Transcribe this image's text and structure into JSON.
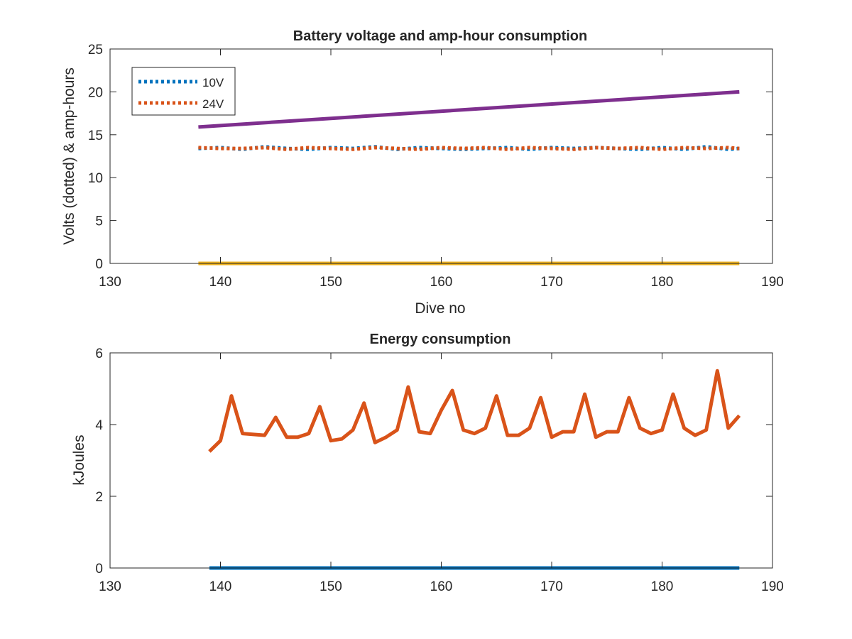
{
  "chart_data": [
    {
      "type": "line",
      "title": "Battery voltage and amp-hour consumption",
      "xlabel": "Dive no",
      "ylabel": "Volts (dotted) & amp-hours",
      "xlim": [
        130,
        190
      ],
      "ylim": [
        0,
        25
      ],
      "xticks": [
        130,
        140,
        150,
        160,
        170,
        180,
        190
      ],
      "yticks": [
        0,
        5,
        10,
        15,
        20,
        25
      ],
      "grid": false,
      "legend": "top-left",
      "series": [
        {
          "name": "10V",
          "style": "dotted",
          "color": "#0072BD",
          "x": [
            138,
            140,
            142,
            144,
            146,
            148,
            150,
            152,
            154,
            156,
            158,
            160,
            162,
            164,
            166,
            168,
            170,
            172,
            174,
            176,
            178,
            180,
            182,
            184,
            186,
            187
          ],
          "y": [
            13.4,
            13.5,
            13.3,
            13.6,
            13.4,
            13.3,
            13.5,
            13.4,
            13.6,
            13.3,
            13.5,
            13.4,
            13.3,
            13.4,
            13.5,
            13.3,
            13.5,
            13.4,
            13.5,
            13.4,
            13.3,
            13.5,
            13.3,
            13.6,
            13.3,
            13.4
          ]
        },
        {
          "name": "24V",
          "style": "dotted",
          "color": "#D95319",
          "x": [
            138,
            140,
            142,
            144,
            146,
            148,
            150,
            152,
            154,
            156,
            158,
            160,
            162,
            164,
            166,
            168,
            170,
            172,
            174,
            176,
            178,
            180,
            182,
            184,
            186,
            187
          ],
          "y": [
            13.5,
            13.4,
            13.4,
            13.5,
            13.3,
            13.5,
            13.4,
            13.3,
            13.5,
            13.4,
            13.3,
            13.5,
            13.4,
            13.5,
            13.3,
            13.5,
            13.4,
            13.3,
            13.5,
            13.4,
            13.5,
            13.3,
            13.5,
            13.4,
            13.5,
            13.4
          ]
        },
        {
          "style": "solid",
          "color": "#7E2F8E",
          "x": [
            138,
            187
          ],
          "y": [
            15.9,
            20.0
          ]
        },
        {
          "style": "solid",
          "color": "#EDB120",
          "x": [
            138,
            187
          ],
          "y": [
            0,
            0
          ]
        }
      ]
    },
    {
      "type": "line",
      "title": "Energy consumption",
      "xlabel": "",
      "ylabel": "kJoules",
      "xlim": [
        130,
        190
      ],
      "ylim": [
        0,
        6
      ],
      "xticks": [
        130,
        140,
        150,
        160,
        170,
        180,
        190
      ],
      "yticks": [
        0,
        2,
        4,
        6
      ],
      "grid": false,
      "series": [
        {
          "style": "solid",
          "color": "#D95319",
          "x": [
            139,
            140,
            141,
            142,
            144,
            145,
            146,
            147,
            148,
            149,
            150,
            151,
            152,
            153,
            154,
            155,
            156,
            157,
            158,
            159,
            160,
            161,
            162,
            163,
            164,
            165,
            166,
            167,
            168,
            169,
            170,
            171,
            172,
            173,
            174,
            175,
            176,
            177,
            178,
            179,
            180,
            181,
            182,
            183,
            184,
            185,
            186,
            187
          ],
          "y": [
            3.25,
            3.55,
            4.8,
            3.75,
            3.7,
            4.2,
            3.65,
            3.65,
            3.75,
            4.5,
            3.55,
            3.6,
            3.85,
            4.6,
            3.5,
            3.65,
            3.85,
            5.05,
            3.8,
            3.75,
            4.4,
            4.95,
            3.85,
            3.75,
            3.9,
            4.8,
            3.7,
            3.7,
            3.9,
            4.75,
            3.65,
            3.8,
            3.8,
            4.85,
            3.65,
            3.8,
            3.8,
            4.75,
            3.9,
            3.75,
            3.85,
            4.85,
            3.9,
            3.7,
            3.85,
            5.5,
            3.9,
            4.25
          ]
        },
        {
          "style": "solid",
          "color": "#0072BD",
          "x": [
            139,
            187
          ],
          "y": [
            0,
            0
          ]
        }
      ]
    }
  ]
}
